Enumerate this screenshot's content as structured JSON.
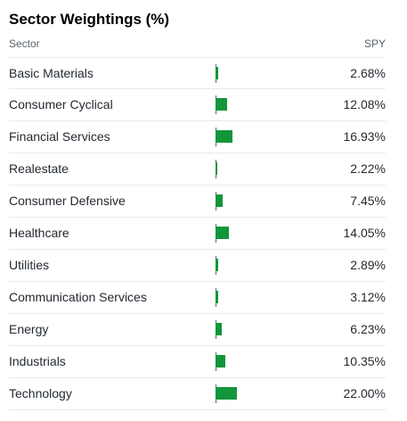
{
  "panel": {
    "title": "Sector Weightings (%)",
    "column_sector": "Sector",
    "column_spy": "SPY"
  },
  "bar_color": "#12963a",
  "rows": [
    {
      "sector": "Basic Materials",
      "value_text": "2.68%",
      "value": 2.68
    },
    {
      "sector": "Consumer Cyclical",
      "value_text": "12.08%",
      "value": 12.08
    },
    {
      "sector": "Financial Services",
      "value_text": "16.93%",
      "value": 16.93
    },
    {
      "sector": "Realestate",
      "value_text": "2.22%",
      "value": 2.22
    },
    {
      "sector": "Consumer Defensive",
      "value_text": "7.45%",
      "value": 7.45
    },
    {
      "sector": "Healthcare",
      "value_text": "14.05%",
      "value": 14.05
    },
    {
      "sector": "Utilities",
      "value_text": "2.89%",
      "value": 2.89
    },
    {
      "sector": "Communication Services",
      "value_text": "3.12%",
      "value": 3.12
    },
    {
      "sector": "Energy",
      "value_text": "6.23%",
      "value": 6.23
    },
    {
      "sector": "Industrials",
      "value_text": "10.35%",
      "value": 10.35
    },
    {
      "sector": "Technology",
      "value_text": "22.00%",
      "value": 22.0
    }
  ]
}
